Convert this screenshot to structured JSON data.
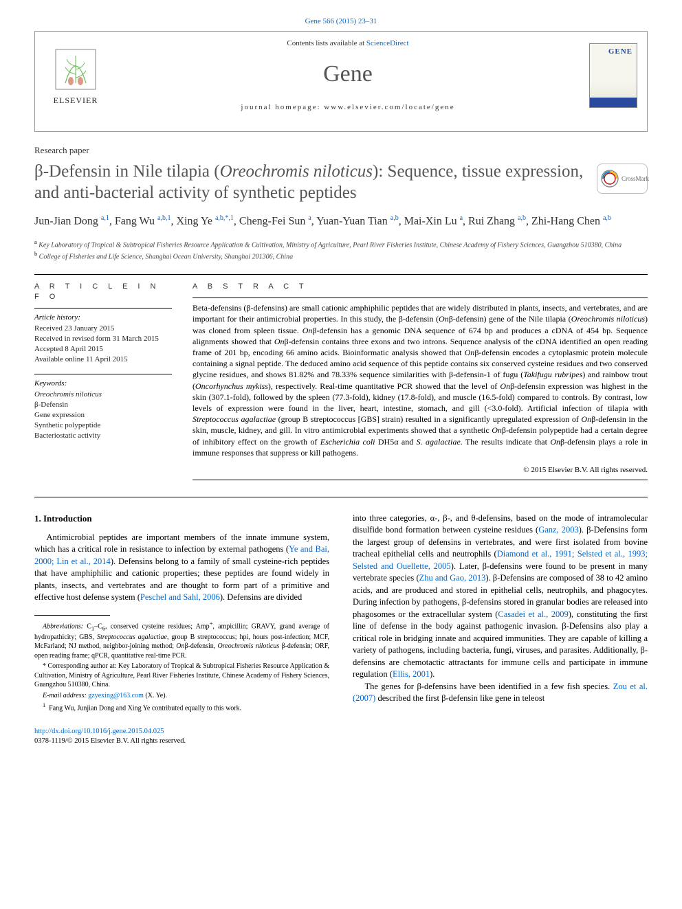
{
  "top_reference": "Gene 566 (2015) 23–31",
  "header": {
    "contents_prefix": "Contents lists available at ",
    "contents_link": "ScienceDirect",
    "journal": "Gene",
    "homepage": "journal homepage: www.elsevier.com/locate/gene",
    "publisher": "ELSEVIER",
    "cover_label": "GENE"
  },
  "paper_type": "Research paper",
  "title_html": "β-Defensin in Nile tilapia (<i>Oreochromis niloticus</i>): Sequence, tissue expression, and anti-bacterial activity of synthetic peptides",
  "crossmark": "CrossMark",
  "authors_html": "Jun-Jian Dong <sup>a,1</sup>, Fang Wu <sup>a,b,1</sup>, Xing Ye <sup>a,b,*,1</sup>, Cheng-Fei Sun <sup>a</sup>, Yuan-Yuan Tian <sup>a,b</sup>, Mai-Xin Lu <sup>a</sup>, Rui Zhang <sup>a,b</sup>, Zhi-Hang Chen <sup>a,b</sup>",
  "affiliations": {
    "a": "Key Laboratory of Tropical & Subtropical Fisheries Resource Application & Cultivation, Ministry of Agriculture, Pearl River Fisheries Institute, Chinese Academy of Fishery Sciences, Guangzhou 510380, China",
    "b": "College of Fisheries and Life Science, Shanghai Ocean University, Shanghai 201306, China"
  },
  "article_info": {
    "head": "A R T I C L E   I N F O",
    "history_label": "Article history:",
    "history": [
      "Received 23 January 2015",
      "Received in revised form 31 March 2015",
      "Accepted 8 April 2015",
      "Available online 11 April 2015"
    ],
    "keywords_label": "Keywords:",
    "keywords": [
      "Oreochromis niloticus",
      "β-Defensin",
      "Gene expression",
      "Synthetic polypeptide",
      "Bacteriostatic activity"
    ]
  },
  "abstract": {
    "head": "A B S T R A C T",
    "text_html": "Beta-defensins (β-defensins) are small cationic amphiphilic peptides that are widely distributed in plants, insects, and vertebrates, and are important for their antimicrobial properties. In this study, the β-defensin (<i>On</i>β-defensin) gene of the Nile tilapia (<i>Oreochromis niloticus</i>) was cloned from spleen tissue. <i>On</i>β-defensin has a genomic DNA sequence of 674 bp and produces a cDNA of 454 bp. Sequence alignments showed that <i>On</i>β-defensin contains three exons and two introns. Sequence analysis of the cDNA identified an open reading frame of 201 bp, encoding 66 amino acids. Bioinformatic analysis showed that <i>On</i>β-defensin encodes a cytoplasmic protein molecule containing a signal peptide. The deduced amino acid sequence of this peptide contains six conserved cysteine residues and two conserved glycine residues, and shows 81.82% and 78.33% sequence similarities with β-defensin-1 of fugu (<i>Takifugu rubripes</i>) and rainbow trout (<i>Oncorhynchus mykiss</i>), respectively. Real-time quantitative PCR showed that the level of <i>On</i>β-defensin expression was highest in the skin (307.1-fold), followed by the spleen (77.3-fold), kidney (17.8-fold), and muscle (16.5-fold) compared to controls. By contrast, low levels of expression were found in the liver, heart, intestine, stomach, and gill (&lt;3.0-fold). Artificial infection of tilapia with <i>Streptococcus agalactiae</i> (group B streptococcus [GBS] strain) resulted in a significantly upregulated expression of <i>On</i>β-defensin in the skin, muscle, kidney, and gill. In vitro antimicrobial experiments showed that a synthetic <i>On</i>β-defensin polypeptide had a certain degree of inhibitory effect on the growth of <i>Escherichia coli</i> DH5α and <i>S. agalactiae</i>. The results indicate that <i>On</i>β-defensin plays a role in immune responses that suppress or kill pathogens.",
    "copyright": "© 2015 Elsevier B.V. All rights reserved."
  },
  "body": {
    "intro_head": "1. Introduction",
    "p1_html": "Antimicrobial peptides are important members of the innate immune system, which has a critical role in resistance to infection by external pathogens (<span class='cite'>Ye and Bai, 2000; Lin et al., 2014</span>). Defensins belong to a family of small cysteine-rich peptides that have amphiphilic and cationic properties; these peptides are found widely in plants, insects, and vertebrates and are thought to form part of a primitive and effective host defense system (<span class='cite'>Peschel and Sahl, 2006</span>). Defensins are divided",
    "p2_html": "into three categories, α-, β-, and θ-defensins, based on the mode of intramolecular disulfide bond formation between cysteine residues (<span class='cite'>Ganz, 2003</span>). β-Defensins form the largest group of defensins in vertebrates, and were first isolated from bovine tracheal epithelial cells and neutrophils (<span class='cite'>Diamond et al., 1991; Selsted et al., 1993; Selsted and Ouellette, 2005</span>). Later, β-defensins were found to be present in many vertebrate species (<span class='cite'>Zhu and Gao, 2013</span>). β-Defensins are composed of 38 to 42 amino acids, and are produced and stored in epithelial cells, neutrophils, and phagocytes. During infection by pathogens, β-defensins stored in granular bodies are released into phagosomes or the extracellular system (<span class='cite'>Casadei et al., 2009</span>), constituting the first line of defense in the body against pathogenic invasion. β-Defensins also play a critical role in bridging innate and acquired immunities. They are capable of killing a variety of pathogens, including bacteria, fungi, viruses, and parasites. Additionally, β-defensins are chemotactic attractants for immune cells and participate in immune regulation (<span class='cite'>Ellis, 2001</span>).",
    "p3_html": "The genes for β-defensins have been identified in a few fish species. <span class='cite'>Zou et al. (2007)</span> described the first β-defensin like gene in teleost",
    "abbrev_html": "<i>Abbreviations:</i> C<sub>1</sub>–C<sub>6</sub>, conserved cysteine residues; Amp<sup>+</sup>, ampicillin; GRAVY, grand average of hydropathicity; GBS, <i>Streptococcus agalactiae</i>, group B streptococcus; hpi, hours post-infection; MCF, McFarland; NJ method, neighbor-joining method; <i>On</i>β-defensin, <i>Oreochromis niloticus</i> β-defensin; ORF, open reading frame; qPCR, quantitative real-time PCR.",
    "corr_html": "* Corresponding author at: Key Laboratory of Tropical & Subtropical Fisheries Resource Application & Cultivation, Ministry of Agriculture, Pearl River Fisheries Institute, Chinese Academy of Fishery Sciences, Guangzhou 510380, China.",
    "email_html": "<i>E-mail address:</i> <span class='cite'>gzyexing@163.com</span> (X. Ye).",
    "foot1": "Fang Wu, Junjian Dong and Xing Ye contributed equally to this work."
  },
  "footer": {
    "doi": "http://dx.doi.org/10.1016/j.gene.2015.04.025",
    "issn_line": "0378-1119/© 2015 Elsevier B.V. All rights reserved."
  }
}
